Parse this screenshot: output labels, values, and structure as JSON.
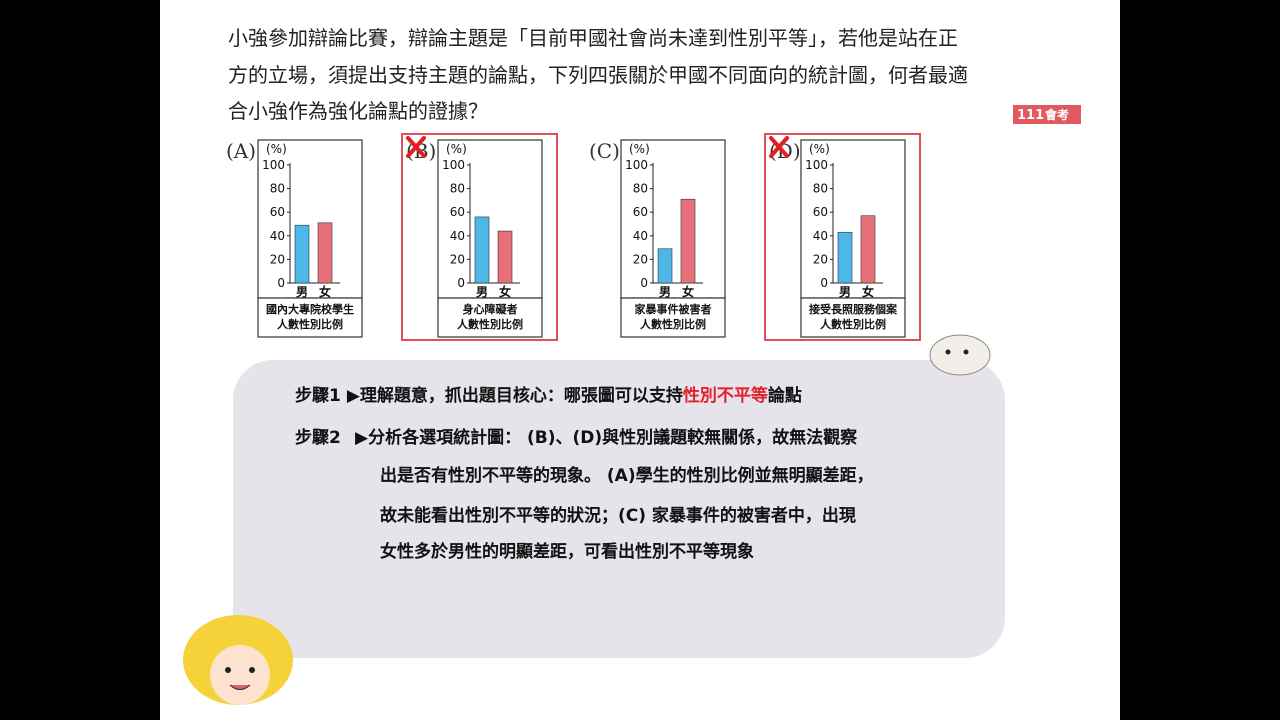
{
  "question": {
    "lines": [
      "小強參加辯論比賽，辯論主題是「目前甲國社會尚未達到性別平等」，若他是站在正",
      "方的立場，須提出支持主題的論點，下列四張關於甲國不同面向的統計圖，何者最適",
      "合小強作為強化論點的證據？"
    ],
    "badge_year": "111",
    "badge_text": "會考"
  },
  "charts": [
    {
      "type": "bar",
      "label": "(A)",
      "unit": "(%)",
      "categories": [
        "男",
        "女"
      ],
      "values": [
        49,
        51
      ],
      "colors": [
        "#4cb8e8",
        "#e8707a"
      ],
      "ylim": [
        0,
        100
      ],
      "yticks": [
        0,
        20,
        40,
        60,
        80,
        100
      ],
      "caption": [
        "國內大專院校學生",
        "人數性別比例"
      ],
      "crossed": false
    },
    {
      "type": "bar",
      "label": "(B)",
      "unit": "(%)",
      "categories": [
        "男",
        "女"
      ],
      "values": [
        56,
        44
      ],
      "colors": [
        "#4cb8e8",
        "#e8707a"
      ],
      "ylim": [
        0,
        100
      ],
      "yticks": [
        0,
        20,
        40,
        60,
        80,
        100
      ],
      "caption": [
        "身心障礙者",
        "人數性別比例"
      ],
      "crossed": true
    },
    {
      "type": "bar",
      "label": "(C)",
      "unit": "(%)",
      "categories": [
        "男",
        "女"
      ],
      "values": [
        29,
        71
      ],
      "colors": [
        "#4cb8e8",
        "#e8707a"
      ],
      "ylim": [
        0,
        100
      ],
      "yticks": [
        0,
        20,
        40,
        60,
        80,
        100
      ],
      "caption": [
        "家暴事件被害者",
        "人數性別比例"
      ],
      "crossed": false
    },
    {
      "type": "bar",
      "label": "(D)",
      "unit": "(%)",
      "categories": [
        "男",
        "女"
      ],
      "values": [
        43,
        57
      ],
      "colors": [
        "#4cb8e8",
        "#e8707a"
      ],
      "ylim": [
        0,
        100
      ],
      "yticks": [
        0,
        20,
        40,
        60,
        80,
        100
      ],
      "caption": [
        "接受長照服務個案",
        "人數性別比例"
      ],
      "crossed": true
    }
  ],
  "steps": [
    {
      "label": "步驟1",
      "segments": [
        "▶理解題意，抓出題目核心：哪張圖可以支持",
        "性別不平等",
        "論點"
      ]
    },
    {
      "label": "步驟2",
      "lines": [
        "▶分析各選項統計圖： (B)、(D)與性別議題較無關係，故無法觀察",
        "出是否有性別不平等的現象。 (A)學生的性別比例並無明顯差距，",
        "故未能看出性別不平等的狀況；(C) 家暴事件的被害者中，出現",
        "女性多於男性的明顯差距，可看出性別不平等現象"
      ]
    }
  ]
}
